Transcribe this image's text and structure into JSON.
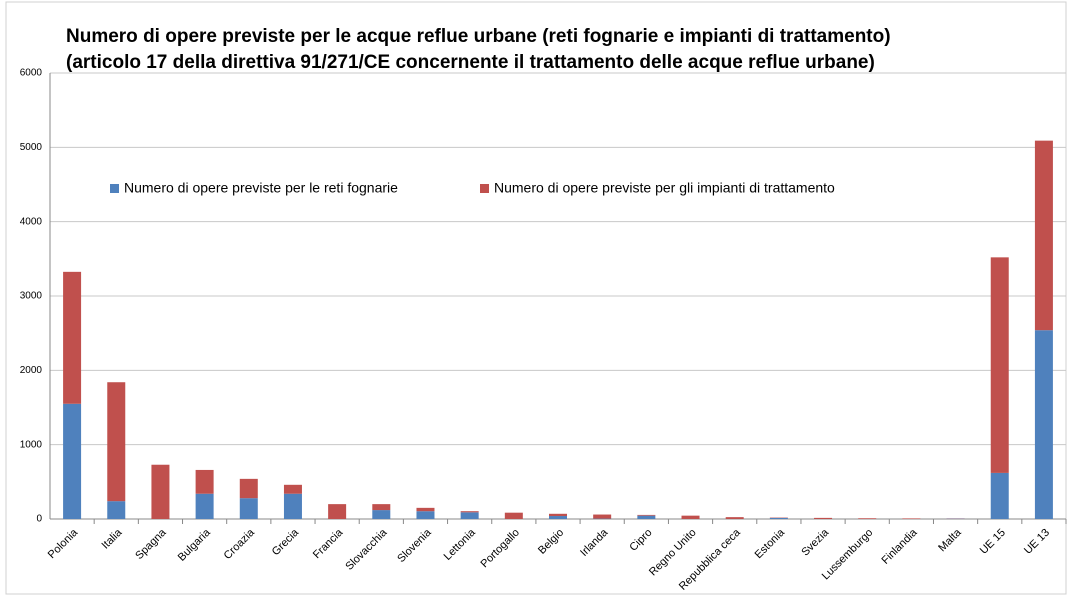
{
  "chart_data": {
    "type": "stacked_bar",
    "title": "Numero di opere previste per le acque reflue urbane (reti fognarie e impianti di trattamento)",
    "subtitle": "(articolo 17 della direttiva 91/271/CE concernente il trattamento delle acque reflue urbane)",
    "categories": [
      "Polonia",
      "Italia",
      "Spagna",
      "Bulgaria",
      "Croazia",
      "Grecia",
      "Francia",
      "Slovacchia",
      "Slovenia",
      "Lettonia",
      "Portogallo",
      "Belgio",
      "Irlanda",
      "Cipro",
      "Regno Unito",
      "Repubblica ceca",
      "Estonia",
      "Svezia",
      "Lussemburgo",
      "Finlandia",
      "Malta",
      "UE 15",
      "UE 13"
    ],
    "series": [
      {
        "name": "Numero di opere previste per le reti fognarie",
        "color": "#4f81bd",
        "values": [
          1550,
          240,
          0,
          340,
          280,
          340,
          0,
          120,
          105,
          90,
          0,
          40,
          5,
          45,
          0,
          0,
          15,
          0,
          0,
          0,
          5,
          620,
          2540
        ]
      },
      {
        "name": "Numero di opere previste per gli impianti di trattamento",
        "color": "#c0504d",
        "values": [
          1775,
          1600,
          730,
          320,
          260,
          120,
          200,
          80,
          45,
          15,
          85,
          30,
          55,
          10,
          45,
          25,
          5,
          15,
          10,
          8,
          3,
          2900,
          2550
        ]
      }
    ],
    "ylim": [
      0,
      6000
    ],
    "yticks": [
      0,
      1000,
      2000,
      3000,
      4000,
      5000,
      6000
    ],
    "grid": true,
    "legend": "top"
  }
}
